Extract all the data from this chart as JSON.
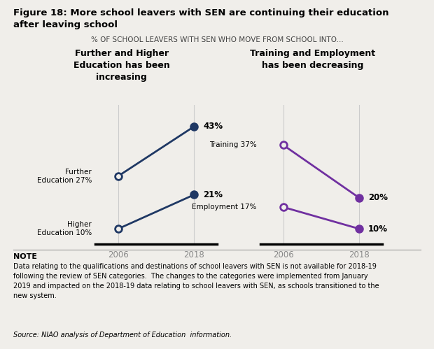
{
  "title_line1": "Figure 18: More school leavers with SEN are continuing their education",
  "title_line2": "after leaving school",
  "subtitle": "% OF SCHOOL LEAVERS WITH SEN WHO MOVE FROM SCHOOL INTO...",
  "left_panel_title": "Further and Higher\nEducation has been\nincreasing",
  "right_panel_title": "Training and Employment\nhas been decreasing",
  "fe_vals": [
    27,
    43
  ],
  "he_vals": [
    10,
    21
  ],
  "tr_vals": [
    37,
    20
  ],
  "em_vals": [
    17,
    10
  ],
  "note_title": "NOTE",
  "note_text": "Data relating to the qualifications and destinations of school leavers with SEN is not available for 2018-19\nfollowing the review of SEN categories.  The changes to the categories were implemented from January\n2019 and impacted on the 2018-19 data relating to school leavers with SEN, as schools transitioned to the\nnew system.",
  "source_text": "Source: NIAO analysis of Department of Education  information.",
  "background_color": "#f0eeea",
  "blue": "#1f3864",
  "purple": "#7030a0",
  "ymin": 5,
  "ymax": 50
}
